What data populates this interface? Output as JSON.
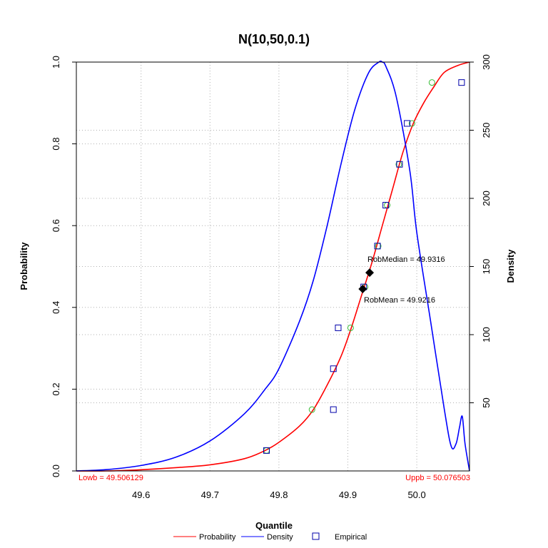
{
  "chart_data": {
    "type": "line",
    "title": "N(10,50,0.1)",
    "xlabel": "Quantile",
    "ylabel_left": "Probability",
    "ylabel_right": "Density",
    "xlim": [
      49.506129,
      50.076503
    ],
    "ylim_left": [
      0,
      1
    ],
    "ylim_right": [
      0,
      300
    ],
    "grid": true,
    "x_ticks": [
      "49.6",
      "49.7",
      "49.8",
      "49.9",
      "50.0"
    ],
    "y_left_ticks": [
      "0.0",
      "0.2",
      "0.4",
      "0.6",
      "0.8",
      "1.0"
    ],
    "y_right_ticks": [
      "50",
      "100",
      "150",
      "200",
      "250",
      "300"
    ],
    "legend_position": "bottom",
    "legend": [
      {
        "label": "Probability",
        "color": "#ff0000",
        "symbol": "line"
      },
      {
        "label": "Density",
        "color": "#0000ff",
        "symbol": "line"
      },
      {
        "label": "Empirical",
        "color": "#0000aa",
        "symbol": "square"
      }
    ],
    "annotations": {
      "lowb": "Lowb = 49.506129",
      "uppb": "Uppb = 50.076503",
      "rob_median": "RobMedian = 49.9316",
      "rob_mean": "RobMean = 49.9216"
    },
    "rob_points": [
      {
        "x": 49.9316,
        "y": 0.485
      },
      {
        "x": 49.9216,
        "y": 0.445
      }
    ],
    "series": [
      {
        "name": "Probability",
        "color": "#ff0000",
        "axis": "left",
        "x": [
          49.506,
          49.55,
          49.6,
          49.65,
          49.7,
          49.75,
          49.78,
          49.8,
          49.83,
          49.85,
          49.87,
          49.89,
          49.905,
          49.92,
          49.935,
          49.95,
          49.965,
          49.98,
          49.995,
          50.01,
          50.025,
          50.04,
          50.06,
          50.0765
        ],
        "y": [
          0.0,
          0.0,
          0.003,
          0.008,
          0.015,
          0.03,
          0.05,
          0.07,
          0.11,
          0.15,
          0.21,
          0.28,
          0.35,
          0.43,
          0.51,
          0.6,
          0.69,
          0.78,
          0.85,
          0.9,
          0.94,
          0.975,
          0.992,
          1.0
        ]
      },
      {
        "name": "Density",
        "color": "#0000ff",
        "axis": "right",
        "x": [
          49.506,
          49.55,
          49.6,
          49.65,
          49.7,
          49.75,
          49.78,
          49.8,
          49.83,
          49.85,
          49.87,
          49.89,
          49.91,
          49.93,
          49.945,
          49.95,
          49.955,
          49.97,
          49.99,
          50.0,
          50.02,
          50.04,
          50.05,
          50.057,
          50.062,
          50.066,
          50.07,
          50.0765
        ],
        "y": [
          0,
          1,
          4,
          10,
          22,
          42,
          60,
          75,
          110,
          140,
          180,
          225,
          265,
          292,
          300,
          300,
          297,
          275,
          220,
          175,
          110,
          45,
          18,
          20,
          32,
          40,
          20,
          0
        ]
      },
      {
        "name": "Empirical",
        "color": "#0000aa",
        "axis": "left",
        "x": [
          49.782,
          49.879,
          49.879,
          49.886,
          49.923,
          49.943,
          49.955,
          49.975,
          49.986,
          50.065
        ],
        "y": [
          0.05,
          0.15,
          0.25,
          0.35,
          0.45,
          0.55,
          0.65,
          0.75,
          0.85,
          0.95
        ]
      },
      {
        "color": "#33bb33",
        "axis": "left",
        "x": [
          49.782,
          49.848,
          49.904,
          49.925,
          49.944,
          49.957,
          49.974,
          49.993,
          50.022
        ],
        "y": [
          0.05,
          0.15,
          0.35,
          0.45,
          0.55,
          0.65,
          0.75,
          0.85,
          0.95
        ]
      }
    ]
  }
}
